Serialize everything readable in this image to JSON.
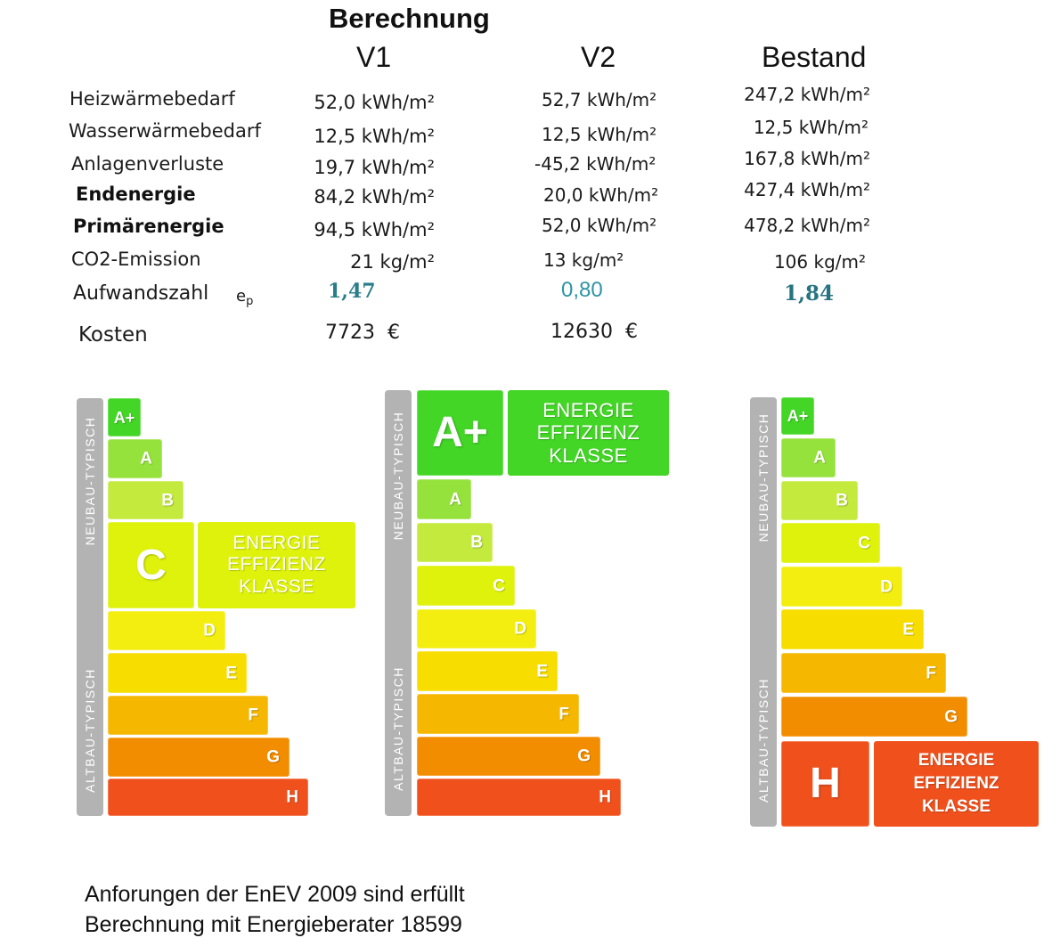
{
  "header": {
    "title": "Berechnung"
  },
  "columns": [
    "V1",
    "V2",
    "Bestand"
  ],
  "rows": [
    {
      "label": "Heizwärmebedarf",
      "values": [
        "52,0 kWh/m²",
        "52,7 kWh/m²",
        "247,2 kWh/m²"
      ]
    },
    {
      "label": "Wasserwärmebedarf",
      "values": [
        "12,5 kWh/m²",
        "12,5 kWh/m²",
        "12,5 kWh/m²"
      ]
    },
    {
      "label": "Anlagenverluste",
      "values": [
        "19,7 kWh/m²",
        "-45,2 kWh/m²",
        "167,8 kWh/m²"
      ]
    },
    {
      "label": "Endenergie",
      "values": [
        "84,2 kWh/m²",
        "20,0 kWh/m²",
        "427,4 kWh/m²"
      ]
    },
    {
      "label": "Primärenergie",
      "values": [
        "94,5 kWh/m²",
        "52,0 kWh/m²",
        "478,2 kWh/m²"
      ]
    },
    {
      "label": "CO2-Emission",
      "values": [
        "21 kg/m²",
        "13 kg/m²",
        "106 kg/m²"
      ]
    }
  ],
  "aufwandszahl": {
    "label": "Aufwandszahl",
    "symbol": "e",
    "subscript": "p",
    "values": [
      "1,47",
      "0,80",
      "1,84"
    ],
    "color": "#2a7f8a"
  },
  "kosten": {
    "label": "Kosten",
    "values": [
      "7723  €",
      "12630  €"
    ]
  },
  "energy_scale": {
    "classes": [
      "A+",
      "A",
      "B",
      "C",
      "D",
      "E",
      "F",
      "G",
      "H"
    ],
    "colors": {
      "A+": "#43d626",
      "A": "#96e23c",
      "B": "#c3ea3c",
      "C": "#def20c",
      "D": "#f3ee10",
      "E": "#f7dd00",
      "F": "#f6b700",
      "G": "#f38d00",
      "H": "#f0501c"
    },
    "side_color": "#b3b3b3",
    "side_labels": {
      "top": "NEUBAU-TYPISCH",
      "bottom": "ALTBAU-TYPISCH"
    },
    "badge_lines": [
      "ENERGIE",
      "EFFIZIENZ",
      "KLASSE"
    ]
  },
  "ratings": [
    "C",
    "A+",
    "H"
  ],
  "footer": {
    "lines": [
      "Anforungen der EnEV 2009 sind erfüllt",
      "Berechnung mit Energieberater 18599"
    ]
  }
}
